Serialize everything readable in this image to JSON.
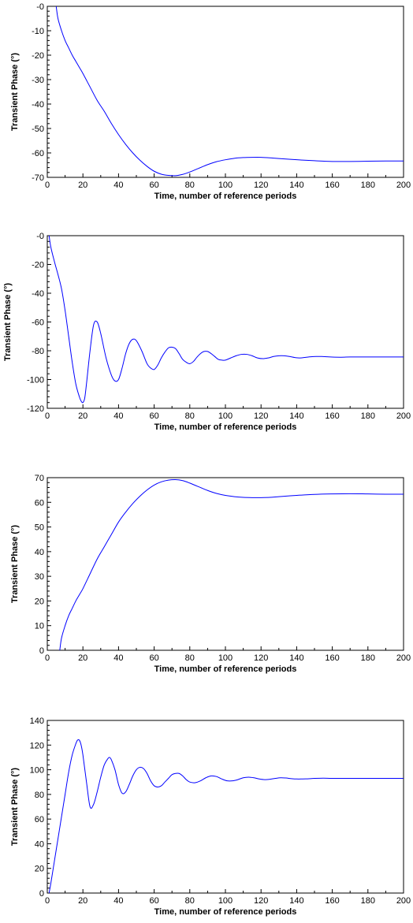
{
  "chart_data": [
    {
      "type": "line",
      "xlabel": "Time, number of reference periods",
      "ylabel": "Transient Phase (°)",
      "xlim": [
        0,
        200
      ],
      "ylim": [
        -70,
        0
      ],
      "x_ticks": [
        0,
        20,
        40,
        60,
        80,
        100,
        120,
        140,
        160,
        180,
        200
      ],
      "y_ticks": [
        -70,
        -60,
        -50,
        -40,
        -30,
        -20,
        -10,
        0
      ],
      "y_tick_labels": [
        "-70",
        "-60",
        "-50",
        "-40",
        "-30",
        "-20",
        "-10",
        "-0"
      ],
      "grid": false,
      "line_color": "#0000ff",
      "series": [
        {
          "x": [
            5,
            6,
            8,
            10,
            12,
            14,
            16,
            18,
            20,
            24,
            28,
            32,
            36,
            40,
            44,
            48,
            52,
            56,
            60,
            64,
            68,
            72,
            76,
            80,
            85,
            90,
            95,
            100,
            105,
            110,
            115,
            120,
            125,
            130,
            140,
            150,
            160,
            170,
            180,
            190,
            200
          ],
          "y": [
            0,
            -5,
            -10,
            -14,
            -17,
            -20,
            -22.5,
            -25,
            -27.5,
            -33,
            -38.5,
            -43,
            -48,
            -52.5,
            -56.5,
            -60,
            -63,
            -65.5,
            -67.5,
            -68.7,
            -69.2,
            -69.3,
            -68.8,
            -67.8,
            -66.3,
            -64.8,
            -63.6,
            -62.8,
            -62.2,
            -61.9,
            -61.8,
            -61.8,
            -62,
            -62.3,
            -62.8,
            -63.2,
            -63.5,
            -63.5,
            -63.4,
            -63.3,
            -63.3
          ]
        }
      ]
    },
    {
      "type": "line",
      "xlabel": "Time, number of reference periods",
      "ylabel": "Transient Phase (°)",
      "xlim": [
        0,
        200
      ],
      "ylim": [
        -120,
        0
      ],
      "x_ticks": [
        0,
        20,
        40,
        60,
        80,
        100,
        120,
        140,
        160,
        180,
        200
      ],
      "y_ticks": [
        -120,
        -100,
        -80,
        -60,
        -40,
        -20,
        0
      ],
      "y_tick_labels": [
        "-120",
        "-100",
        "-80",
        "-60",
        "-40",
        "-20",
        "-0"
      ],
      "grid": false,
      "line_color": "#0000ff",
      "series": [
        {
          "x": [
            1,
            2,
            4,
            6,
            8,
            10,
            12,
            14,
            16,
            18,
            19,
            20,
            21,
            22,
            24,
            26,
            28,
            30,
            33,
            36,
            38,
            40,
            42,
            44,
            46,
            48,
            50,
            53,
            56,
            58,
            60,
            62,
            64,
            66,
            68,
            70,
            72,
            74,
            76,
            78,
            80,
            82,
            84,
            86,
            88,
            90,
            92,
            94,
            96,
            98,
            100,
            103,
            106,
            109,
            112,
            115,
            118,
            121,
            124,
            127,
            130,
            133,
            136,
            139,
            142,
            145,
            148,
            151,
            154,
            157,
            160,
            165,
            170,
            175,
            180,
            185,
            190,
            195,
            200
          ],
          "y": [
            0,
            -8,
            -18,
            -27,
            -37,
            -52,
            -70,
            -88,
            -103,
            -112,
            -115,
            -116,
            -113,
            -103,
            -80,
            -62,
            -60,
            -68,
            -85,
            -97,
            -101,
            -100,
            -92,
            -82,
            -75,
            -72,
            -73,
            -80,
            -89,
            -92,
            -93,
            -90,
            -85,
            -81,
            -78,
            -77.5,
            -78.5,
            -82,
            -86,
            -88,
            -89,
            -87.5,
            -84.5,
            -82,
            -80.5,
            -80.5,
            -82,
            -84,
            -86,
            -86.5,
            -86.5,
            -85,
            -83.5,
            -82.5,
            -82.5,
            -83.5,
            -85,
            -85.5,
            -85,
            -84,
            -83.5,
            -83.5,
            -84,
            -84.7,
            -85,
            -84.6,
            -84.2,
            -84,
            -84,
            -84.2,
            -84.4,
            -84.5,
            -84.3,
            -84.3,
            -84.3,
            -84.3,
            -84.3,
            -84.3,
            -84.3
          ]
        }
      ]
    },
    {
      "type": "line",
      "xlabel": "Time, number of reference periods",
      "ylabel": "Transient Phase (°)",
      "xlim": [
        0,
        200
      ],
      "ylim": [
        0,
        70
      ],
      "x_ticks": [
        0,
        20,
        40,
        60,
        80,
        100,
        120,
        140,
        160,
        180,
        200
      ],
      "y_ticks": [
        0,
        10,
        20,
        30,
        40,
        50,
        60,
        70
      ],
      "y_tick_labels": [
        "0",
        "10",
        "20",
        "30",
        "40",
        "50",
        "60",
        "70"
      ],
      "grid": false,
      "line_color": "#0000ff",
      "series": [
        {
          "x": [
            7,
            8,
            10,
            12,
            14,
            16,
            18,
            20,
            24,
            28,
            32,
            36,
            40,
            44,
            48,
            52,
            56,
            60,
            64,
            68,
            72,
            76,
            80,
            85,
            90,
            95,
            100,
            105,
            110,
            115,
            120,
            125,
            130,
            140,
            150,
            160,
            170,
            180,
            190,
            200
          ],
          "y": [
            0,
            5,
            10,
            14,
            17,
            20,
            22.5,
            25,
            31,
            37,
            42,
            47,
            52,
            56,
            59.5,
            62.5,
            65,
            67,
            68.3,
            69,
            69.2,
            68.8,
            67.8,
            66.3,
            64.8,
            63.6,
            62.8,
            62.3,
            62,
            61.9,
            61.9,
            62,
            62.3,
            62.8,
            63.2,
            63.4,
            63.5,
            63.4,
            63.3,
            63.3
          ]
        }
      ]
    },
    {
      "type": "line",
      "xlabel": "Time, number of reference periods",
      "ylabel": "Transient Phase (°)",
      "xlim": [
        0,
        200
      ],
      "ylim": [
        0,
        140
      ],
      "x_ticks": [
        0,
        20,
        40,
        60,
        80,
        100,
        120,
        140,
        160,
        180,
        200
      ],
      "y_ticks": [
        0,
        20,
        40,
        60,
        80,
        100,
        120,
        140
      ],
      "y_tick_labels": [
        "0",
        "20",
        "40",
        "60",
        "80",
        "100",
        "120",
        "140"
      ],
      "grid": false,
      "line_color": "#0000ff",
      "series": [
        {
          "x": [
            1,
            2,
            4,
            6,
            8,
            10,
            12,
            14,
            16,
            17,
            18,
            19,
            20,
            22,
            24,
            26,
            28,
            30,
            32,
            34,
            35,
            36,
            38,
            40,
            42,
            44,
            46,
            48,
            50,
            52,
            54,
            56,
            58,
            60,
            62,
            64,
            66,
            68,
            70,
            72,
            74,
            76,
            78,
            80,
            83,
            86,
            89,
            92,
            95,
            98,
            101,
            104,
            107,
            110,
            113,
            116,
            119,
            122,
            125,
            128,
            131,
            134,
            137,
            140,
            145,
            150,
            155,
            160,
            170,
            180,
            190,
            200
          ],
          "y": [
            0,
            8,
            26,
            44,
            62,
            80,
            98,
            112,
            121,
            124,
            124,
            120,
            112,
            90,
            70,
            72,
            82,
            94,
            104,
            109,
            110,
            108,
            100,
            88,
            81,
            82,
            88,
            95,
            100,
            102,
            101,
            97,
            91,
            87,
            86,
            87,
            90,
            93,
            96,
            97,
            97,
            95,
            92,
            90,
            89.5,
            91,
            93.5,
            95,
            94.5,
            92.5,
            91,
            91,
            92,
            93.5,
            94,
            93.5,
            92.5,
            92,
            92.3,
            93,
            93.5,
            93.3,
            92.8,
            92.5,
            92.6,
            93,
            93.2,
            93,
            93,
            93,
            93,
            93
          ]
        }
      ]
    }
  ]
}
